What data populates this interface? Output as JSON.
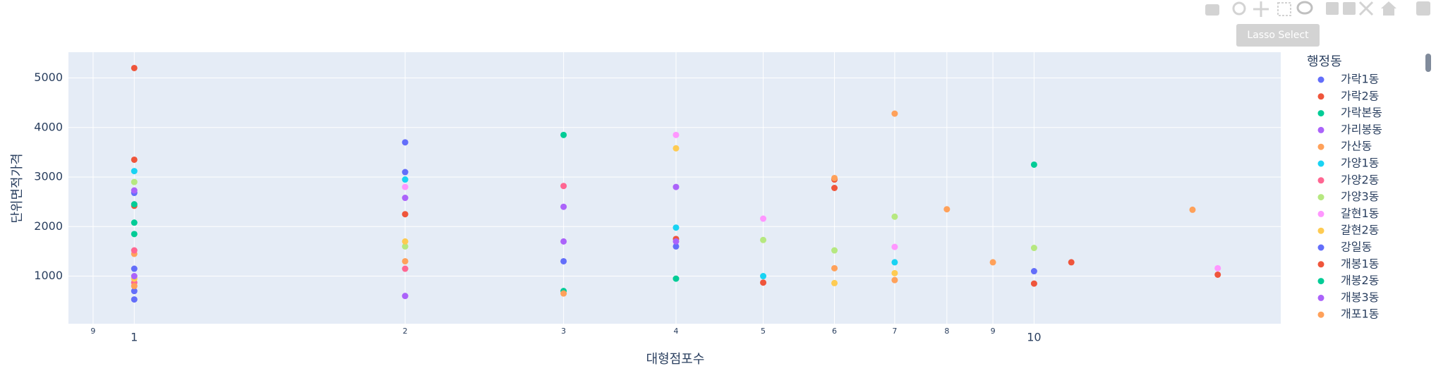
{
  "chart_data": {
    "type": "scatter",
    "x_label": "대형점포수",
    "y_label": "단위면적가격",
    "legend_title": "행정동",
    "xscale": "log",
    "xlim": [
      0.845,
      18.8
    ],
    "ylim": [
      40,
      5520
    ],
    "grid": true,
    "xticks": [
      {
        "value": 0.9,
        "label": "9"
      },
      1,
      2,
      3,
      4,
      5,
      6,
      7,
      8,
      9,
      10
    ],
    "yticks": [
      1000,
      2000,
      3000,
      4000,
      5000
    ],
    "series": [
      {
        "name": "가락1동",
        "color": "#636efa",
        "x": [
          1,
          1,
          2,
          3,
          10
        ],
        "values": [
          2680,
          1150,
          3100,
          1300,
          1100
        ]
      },
      {
        "name": "가락2동",
        "color": "#EF553B",
        "x": [
          1,
          1,
          2,
          4,
          5
        ],
        "values": [
          5200,
          2420,
          2250,
          1750,
          870
        ]
      },
      {
        "name": "가락본동",
        "color": "#00cc96",
        "x": [
          1,
          1,
          3,
          10
        ],
        "values": [
          2450,
          1850,
          3850,
          3250
        ]
      },
      {
        "name": "가리봉동",
        "color": "#ab63fa",
        "x": [
          1,
          2,
          3,
          4
        ],
        "values": [
          2730,
          2580,
          2400,
          2800
        ]
      },
      {
        "name": "가산동",
        "color": "#FFA15A",
        "x": [
          1,
          2,
          7,
          8,
          15
        ],
        "values": [
          1450,
          1300,
          4280,
          2350,
          2340
        ]
      },
      {
        "name": "가양1동",
        "color": "#19d3f3",
        "x": [
          1,
          2,
          4,
          5,
          7
        ],
        "values": [
          3120,
          2950,
          1980,
          1000,
          1280
        ]
      },
      {
        "name": "가양2동",
        "color": "#FF6692",
        "x": [
          1,
          1,
          2,
          3
        ],
        "values": [
          1520,
          870,
          1150,
          2820
        ]
      },
      {
        "name": "가양3동",
        "color": "#B6E880",
        "x": [
          1,
          2,
          5,
          6,
          7,
          10
        ],
        "values": [
          2900,
          1600,
          1730,
          1520,
          2200,
          1570
        ]
      },
      {
        "name": "갈현1동",
        "color": "#FF97FF",
        "x": [
          2,
          4,
          5,
          7,
          16
        ],
        "values": [
          2800,
          3850,
          2160,
          1590,
          1160
        ]
      },
      {
        "name": "갈현2동",
        "color": "#FECB52",
        "x": [
          1,
          2,
          4,
          6,
          7
        ],
        "values": [
          950,
          1700,
          3580,
          860,
          1060
        ]
      },
      {
        "name": "강일동",
        "color": "#636efa",
        "x": [
          1,
          1,
          2,
          4
        ],
        "values": [
          700,
          530,
          3700,
          1600
        ]
      },
      {
        "name": "개봉1동",
        "color": "#EF553B",
        "x": [
          1,
          6,
          6,
          10,
          11,
          16
        ],
        "values": [
          3350,
          2950,
          2780,
          850,
          1280,
          1030
        ]
      },
      {
        "name": "개봉2동",
        "color": "#00cc96",
        "x": [
          1,
          3,
          4
        ],
        "values": [
          2080,
          700,
          950
        ]
      },
      {
        "name": "개봉3동",
        "color": "#ab63fa",
        "x": [
          1,
          2,
          3,
          4
        ],
        "values": [
          1000,
          600,
          1700,
          1700
        ]
      },
      {
        "name": "개포1동",
        "color": "#FFA15A",
        "x": [
          1,
          6,
          6,
          7,
          9,
          3
        ],
        "values": [
          800,
          2980,
          1160,
          920,
          1280,
          650
        ]
      }
    ]
  },
  "ui": {
    "tooltip": "Lasso Select"
  }
}
